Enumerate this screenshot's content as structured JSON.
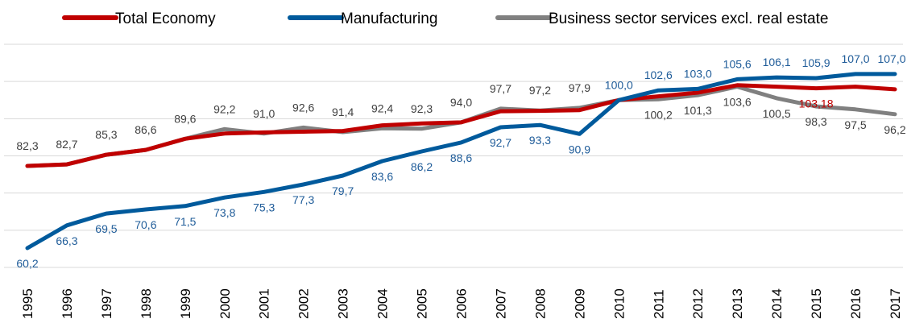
{
  "chart_data": {
    "type": "line",
    "title": "",
    "xlabel": "",
    "ylabel": "",
    "ylim": [
      55,
      115
    ],
    "grid": "horizontal",
    "legend_position": "top",
    "categories": [
      "1995",
      "1996",
      "1997",
      "1998",
      "1999",
      "2000",
      "2001",
      "2002",
      "2003",
      "2004",
      "2005",
      "2006",
      "2007",
      "2008",
      "2009",
      "2010",
      "2011",
      "2012",
      "2013",
      "2014",
      "2015",
      "2016",
      "2017"
    ],
    "series": [
      {
        "name": "Total Economy",
        "color": "#C00000",
        "values": [
          82.3,
          82.7,
          85.3,
          86.6,
          89.6,
          91.0,
          91.3,
          91.5,
          91.7,
          93.2,
          93.7,
          94.0,
          97.0,
          97.1,
          97.3,
          100.0,
          101.0,
          102.0,
          104.0,
          103.6,
          103.18,
          103.6,
          102.9
        ],
        "labels": [
          "",
          "",
          "",
          "",
          "",
          "",
          "",
          "",
          "",
          "",
          "",
          "",
          "",
          "",
          "",
          "",
          "",
          "",
          "",
          "",
          "103,18",
          "",
          ""
        ]
      },
      {
        "name": "Manufacturing",
        "color": "#005A9C",
        "values": [
          60.2,
          66.3,
          69.5,
          70.6,
          71.5,
          73.8,
          75.3,
          77.3,
          79.7,
          83.6,
          86.2,
          88.6,
          92.7,
          93.3,
          90.9,
          100.0,
          102.6,
          103.0,
          105.6,
          106.1,
          105.9,
          107.0,
          107.0
        ],
        "labels": [
          "60,2",
          "66,3",
          "69,5",
          "70,6",
          "71,5",
          "73,8",
          "75,3",
          "77,3",
          "79,7",
          "83,6",
          "86,2",
          "88,6",
          "92,7",
          "93,3",
          "90,9",
          "100,0",
          "102,6",
          "103,0",
          "105,6",
          "106,1",
          "105,9",
          "107,0",
          "107,0"
        ]
      },
      {
        "name": "Business sector services excl. real estate",
        "color": "#808080",
        "values": [
          82.3,
          82.7,
          85.3,
          86.6,
          89.6,
          92.2,
          91.0,
          92.6,
          91.4,
          92.4,
          92.3,
          94.0,
          97.7,
          97.2,
          97.9,
          100.0,
          100.2,
          101.3,
          103.6,
          100.5,
          98.3,
          97.5,
          96.2
        ],
        "labels": [
          "82,3",
          "82,7",
          "85,3",
          "86,6",
          "89,6",
          "92,2",
          "91,0",
          "92,6",
          "91,4",
          "92,4",
          "92,3",
          "94,0",
          "97,7",
          "97,2",
          "97,9",
          "",
          "100,2",
          "101,3",
          "103,6",
          "100,5",
          "98,3",
          "97,5",
          "96,2"
        ]
      }
    ]
  }
}
